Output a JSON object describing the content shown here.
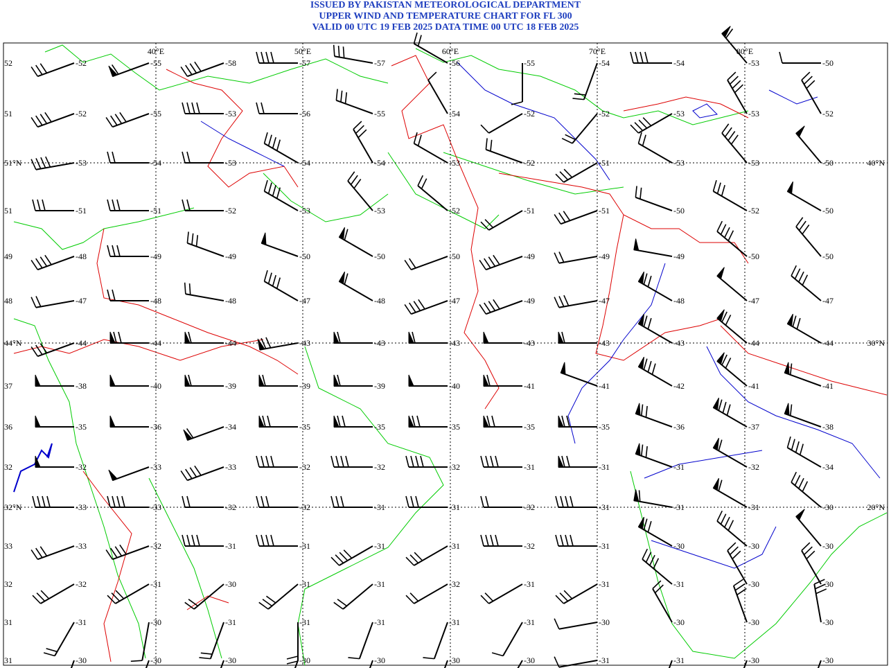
{
  "header": {
    "line1": "ISSUED BY PAKISTAN METEOROLOGICAL DEPARTMENT",
    "line2": "UPPER WIND AND TEMPERATURE CHART FOR FL 300",
    "line3": "VALID 00 UTC 19 FEB 2025 DATA TIME 00 UTC 18 FEB 2025"
  },
  "colors": {
    "title": "#1f3fbf",
    "border_green": "#00cc00",
    "border_red": "#dd0000",
    "river_blue": "#0000cc",
    "graticule": "#000000",
    "barb": "#000000"
  },
  "longitude_labels": [
    "40°E",
    "50°E",
    "60°E",
    "70°E",
    "80°E"
  ],
  "latitude_labels": [
    "40°N",
    "30°N",
    "20°N"
  ],
  "left_axis_labels": [
    "52",
    "51",
    "51°N",
    "51",
    "49",
    "48",
    "44°N",
    "37",
    "36",
    "32",
    "32°N",
    "33",
    "32",
    "31",
    "31"
  ],
  "temperature_grid": [
    [
      "-52",
      "-55",
      "-58",
      "-57",
      "-57",
      "-56",
      "-55",
      "-54",
      "-54",
      "-53",
      "-50"
    ],
    [
      "-52",
      "-55",
      "-53",
      "-56",
      "-55",
      "-54",
      "-52",
      "-52",
      "-53",
      "-53",
      "-52"
    ],
    [
      "-53",
      "-54",
      "-53",
      "-54",
      "-54",
      "-53",
      "-52",
      "-51",
      "-53",
      "-53",
      "-50"
    ],
    [
      "-51",
      "-51",
      "-52",
      "-53",
      "-53",
      "-52",
      "-51",
      "-51",
      "-50",
      "-52",
      "-50"
    ],
    [
      "-48",
      "-49",
      "-49",
      "-50",
      "-50",
      "-50",
      "-49",
      "-49",
      "-49",
      "-50",
      "-50"
    ],
    [
      "-47",
      "-48",
      "-48",
      "-47",
      "-48",
      "-47",
      "-49",
      "-47",
      "-48",
      "-47",
      "-47"
    ],
    [
      "-44",
      "-44",
      "-44",
      "-43",
      "-43",
      "-43",
      "-43",
      "-43",
      "-43",
      "-44",
      "-44"
    ],
    [
      "-38",
      "-40",
      "-39",
      "-39",
      "-39",
      "-40",
      "-41",
      "-41",
      "-42",
      "-41",
      "-41"
    ],
    [
      "-35",
      "-36",
      "-34",
      "-35",
      "-35",
      "-35",
      "-35",
      "-35",
      "-36",
      "-37",
      "-38"
    ],
    [
      "-32",
      "-33",
      "-33",
      "-32",
      "-32",
      "-32",
      "-31",
      "-31",
      "-31",
      "-32",
      "-34"
    ],
    [
      "-33",
      "-33",
      "-32",
      "-32",
      "-31",
      "-31",
      "-32",
      "-31",
      "-31",
      "-31",
      "-30"
    ],
    [
      "-33",
      "-32",
      "-31",
      "-31",
      "-31",
      "-31",
      "-32",
      "-31",
      "-30",
      "-30",
      "-30"
    ],
    [
      "-32",
      "-31",
      "-30",
      "-31",
      "-31",
      "-32",
      "-31",
      "-31",
      "-31",
      "-30",
      "-30"
    ],
    [
      "-31",
      "-30",
      "-31",
      "-31",
      "-31",
      "-31",
      "-31",
      "-30",
      "-30",
      "-30",
      "-30"
    ],
    [
      "-30",
      "-30",
      "-30",
      "-30",
      "-30",
      "-30",
      "-30",
      "-31",
      "-31",
      "-30",
      "-30"
    ]
  ],
  "wind_speed_grid_kt": [
    [
      30,
      60,
      40,
      40,
      30,
      20,
      10,
      20,
      40,
      60,
      10
    ],
    [
      40,
      40,
      40,
      20,
      30,
      10,
      10,
      20,
      40,
      40,
      30
    ],
    [
      40,
      20,
      20,
      40,
      30,
      20,
      20,
      30,
      20,
      40,
      50
    ],
    [
      30,
      30,
      20,
      40,
      30,
      20,
      20,
      30,
      20,
      30,
      50
    ],
    [
      40,
      30,
      30,
      50,
      60,
      20,
      40,
      20,
      50,
      40,
      30
    ],
    [
      20,
      20,
      20,
      40,
      60,
      40,
      40,
      30,
      70,
      50,
      40
    ],
    [
      30,
      70,
      60,
      70,
      60,
      60,
      50,
      60,
      70,
      70,
      70
    ],
    [
      50,
      50,
      60,
      60,
      60,
      50,
      60,
      50,
      80,
      70,
      60
    ],
    [
      50,
      50,
      60,
      70,
      70,
      70,
      70,
      70,
      70,
      80,
      60
    ],
    [
      50,
      50,
      40,
      40,
      40,
      40,
      40,
      70,
      70,
      60,
      40
    ],
    [
      40,
      40,
      20,
      30,
      30,
      30,
      20,
      40,
      60,
      60,
      40
    ],
    [
      30,
      40,
      40,
      40,
      40,
      30,
      40,
      40,
      70,
      40,
      50
    ],
    [
      30,
      30,
      20,
      30,
      20,
      20,
      20,
      30,
      40,
      30,
      30
    ],
    [
      20,
      10,
      20,
      20,
      10,
      10,
      10,
      10,
      20,
      30,
      30
    ],
    [
      10,
      10,
      10,
      10,
      10,
      10,
      10,
      10,
      10,
      10,
      10
    ]
  ],
  "wind_dir_grid_deg": [
    [
      250,
      250,
      250,
      270,
      280,
      300,
      180,
      200,
      270,
      320,
      270
    ],
    [
      250,
      250,
      270,
      270,
      290,
      330,
      240,
      220,
      240,
      330,
      330
    ],
    [
      260,
      270,
      270,
      300,
      330,
      300,
      290,
      240,
      300,
      320,
      320
    ],
    [
      270,
      270,
      270,
      300,
      320,
      310,
      240,
      250,
      290,
      300,
      300
    ],
    [
      250,
      270,
      290,
      290,
      300,
      250,
      250,
      260,
      280,
      310,
      320
    ],
    [
      260,
      270,
      280,
      300,
      300,
      250,
      250,
      260,
      300,
      310,
      310
    ],
    [
      250,
      270,
      270,
      260,
      270,
      270,
      270,
      270,
      300,
      310,
      300
    ],
    [
      270,
      270,
      270,
      270,
      270,
      270,
      270,
      290,
      300,
      310,
      290
    ],
    [
      270,
      270,
      250,
      270,
      270,
      270,
      270,
      270,
      290,
      300,
      290
    ],
    [
      270,
      250,
      250,
      270,
      270,
      270,
      270,
      270,
      290,
      300,
      300
    ],
    [
      270,
      270,
      270,
      270,
      270,
      270,
      270,
      270,
      280,
      300,
      310
    ],
    [
      250,
      250,
      270,
      270,
      240,
      240,
      270,
      270,
      300,
      310,
      320
    ],
    [
      240,
      240,
      230,
      230,
      230,
      240,
      240,
      240,
      310,
      330,
      330
    ],
    [
      210,
      190,
      200,
      180,
      200,
      200,
      210,
      260,
      330,
      340,
      350
    ],
    [
      200,
      200,
      200,
      200,
      200,
      200,
      210,
      260,
      200,
      200,
      200
    ]
  ]
}
